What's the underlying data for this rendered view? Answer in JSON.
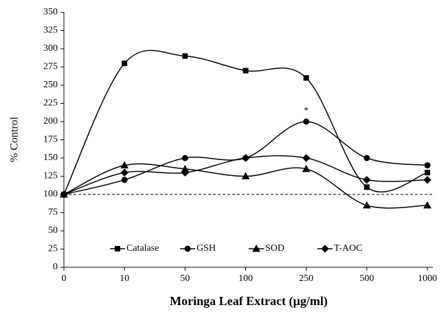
{
  "chart_data": {
    "type": "line",
    "x_label": "Moringa Leaf Extract (µg/ml)",
    "y_label": "% Control",
    "categories": [
      "0",
      "10",
      "50",
      "100",
      "250",
      "500",
      "1000"
    ],
    "series": [
      {
        "name": "Catalase",
        "color": "#000000",
        "marker": "square",
        "values": [
          100,
          280,
          290,
          270,
          260,
          110,
          130
        ]
      },
      {
        "name": "GSH",
        "color": "#000000",
        "marker": "circle",
        "values": [
          100,
          120,
          150,
          150,
          200,
          150,
          140
        ]
      },
      {
        "name": "SOD",
        "color": "#000000",
        "marker": "triangle",
        "values": [
          100,
          140,
          135,
          125,
          135,
          85,
          85
        ]
      },
      {
        "name": "T-AOC",
        "color": "#000000",
        "marker": "diamond",
        "values": [
          100,
          130,
          130,
          150,
          150,
          120,
          120
        ]
      }
    ],
    "reference_line": 100,
    "annotation": "*",
    "ylim": [
      0,
      350
    ],
    "yticks": [
      0,
      25,
      50,
      75,
      100,
      125,
      150,
      175,
      200,
      225,
      250,
      275,
      300,
      325,
      350
    ],
    "smooth": true,
    "legend": "bottom"
  }
}
